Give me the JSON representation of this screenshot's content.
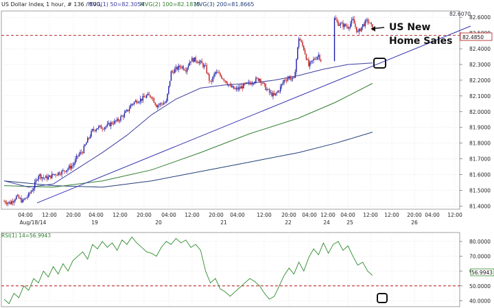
{
  "main": {
    "symbol": "US Dollar Index",
    "interval": ", 1 hour, # 136 / 500,",
    "ma_labels": [
      {
        "text": "MVG(1) 50=82.3054",
        "color": "#3b3ba0"
      },
      {
        "text": "MVG(2) 100=82.1815",
        "color": "#2f7d2f"
      },
      {
        "text": "MVG(3) 200=81.8665",
        "color": "#1f3c78"
      }
    ],
    "top_price_tag": "82.6070",
    "current_price_tag": "82.4850",
    "y_ticks": [
      "82.6000",
      "82.5000",
      "82.4000",
      "82.3000",
      "82.2000",
      "82.1000",
      "82.0000",
      "81.9000",
      "81.8000",
      "81.7000",
      "81.6000",
      "81.5000",
      "81.4000"
    ],
    "x_ticks": [
      "04:00",
      "12:00",
      "20:00",
      "04:00",
      "12:00",
      "20:00",
      "04:00",
      "12:00",
      "20:00",
      "04:00",
      "12:00",
      "20:00",
      "04:00",
      "12:00",
      "12:00",
      "04:00",
      "12:00",
      "20:00",
      "04:00",
      "12:00",
      "20:00"
    ],
    "date_ticks": [
      "Aug/18/14",
      "19",
      "20",
      "21",
      "22",
      "24",
      "25",
      "26"
    ],
    "annotation": "US New\nHome Sales"
  },
  "rsi": {
    "label": "RSI(1) 14=56.9943",
    "y_ticks": [
      "80.0000",
      "70.0000",
      "60.0000",
      "50.0000",
      "40.0000"
    ],
    "current_tag": "56.9943",
    "level_line": 50
  },
  "colors": {
    "bull": "#1a1aa8",
    "bear": "#c01818",
    "ma50": "#3b3ba0",
    "ma100": "#2f7d2f",
    "ma200": "#1f3c78",
    "trendline": "#3030b0",
    "dash": "#b01010",
    "rsi_line": "#2a8a2a"
  },
  "chart_data": [
    {
      "type": "candlestick",
      "title": "US Dollar Index , 1 hour",
      "ylim": [
        81.38,
        82.64
      ],
      "x_labels": [
        "Aug/18/14",
        "19",
        "20",
        "21",
        "22",
        "24",
        "25",
        "26"
      ],
      "series": [
        {
          "name": "MVG(1) 50",
          "value": 82.3054
        },
        {
          "name": "MVG(2) 100",
          "value": 82.1815
        },
        {
          "name": "MVG(3) 200",
          "value": 81.8665
        }
      ],
      "close_path": [
        [
          0,
          81.43
        ],
        [
          5,
          81.42
        ],
        [
          10,
          81.46
        ],
        [
          15,
          81.43
        ],
        [
          20,
          81.47
        ],
        [
          24,
          81.52
        ],
        [
          28,
          81.6
        ],
        [
          32,
          81.58
        ],
        [
          36,
          81.58
        ],
        [
          40,
          81.6
        ],
        [
          44,
          81.61
        ],
        [
          48,
          81.62
        ],
        [
          52,
          81.64
        ],
        [
          56,
          81.66
        ],
        [
          60,
          81.72
        ],
        [
          64,
          81.75
        ],
        [
          68,
          81.82
        ],
        [
          72,
          81.88
        ],
        [
          76,
          81.9
        ],
        [
          80,
          81.9
        ],
        [
          84,
          81.91
        ],
        [
          88,
          81.93
        ],
        [
          92,
          81.94
        ],
        [
          96,
          81.97
        ],
        [
          100,
          82.0
        ],
        [
          104,
          82.05
        ],
        [
          108,
          82.07
        ],
        [
          112,
          82.08
        ],
        [
          116,
          82.1
        ],
        [
          120,
          82.1
        ],
        [
          124,
          82.04
        ],
        [
          128,
          82.05
        ],
        [
          132,
          82.06
        ],
        [
          136,
          82.25
        ],
        [
          140,
          82.27
        ],
        [
          144,
          82.29
        ],
        [
          148,
          82.27
        ],
        [
          152,
          82.33
        ],
        [
          156,
          82.33
        ],
        [
          160,
          82.31
        ],
        [
          164,
          82.28
        ],
        [
          168,
          82.18
        ],
        [
          172,
          82.25
        ],
        [
          176,
          82.23
        ],
        [
          180,
          82.2
        ],
        [
          184,
          82.16
        ],
        [
          188,
          82.14
        ],
        [
          192,
          82.15
        ],
        [
          196,
          82.17
        ],
        [
          200,
          82.18
        ],
        [
          204,
          82.2
        ],
        [
          208,
          82.21
        ],
        [
          212,
          82.16
        ],
        [
          216,
          82.12
        ],
        [
          220,
          82.1
        ],
        [
          224,
          82.14
        ],
        [
          228,
          82.2
        ],
        [
          232,
          82.22
        ],
        [
          236,
          82.2
        ],
        [
          240,
          82.47
        ],
        [
          244,
          82.4
        ],
        [
          248,
          82.29
        ],
        [
          252,
          82.33
        ],
        [
          256,
          82.36
        ],
        [
          258,
          82.33
        ],
        [
          268,
          82.6
        ],
        [
          272,
          82.56
        ],
        [
          276,
          82.55
        ],
        [
          280,
          82.54
        ],
        [
          284,
          82.58
        ],
        [
          288,
          82.5
        ],
        [
          292,
          82.55
        ],
        [
          296,
          82.58
        ],
        [
          300,
          82.53
        ]
      ],
      "ma50_path": [
        [
          0,
          81.56
        ],
        [
          20,
          81.52
        ],
        [
          40,
          81.54
        ],
        [
          60,
          81.64
        ],
        [
          80,
          81.74
        ],
        [
          100,
          81.85
        ],
        [
          120,
          81.98
        ],
        [
          140,
          82.08
        ],
        [
          160,
          82.15
        ],
        [
          180,
          82.17
        ],
        [
          200,
          82.18
        ],
        [
          220,
          82.2
        ],
        [
          240,
          82.23
        ],
        [
          260,
          82.27
        ],
        [
          280,
          82.3
        ],
        [
          300,
          82.31
        ]
      ],
      "ma100_path": [
        [
          0,
          81.53
        ],
        [
          40,
          81.52
        ],
        [
          80,
          81.56
        ],
        [
          120,
          81.63
        ],
        [
          160,
          81.74
        ],
        [
          200,
          81.86
        ],
        [
          240,
          81.96
        ],
        [
          270,
          82.06
        ],
        [
          300,
          82.18
        ]
      ],
      "ma200_path": [
        [
          0,
          81.56
        ],
        [
          40,
          81.53
        ],
        [
          80,
          81.52
        ],
        [
          120,
          81.56
        ],
        [
          160,
          81.62
        ],
        [
          200,
          81.68
        ],
        [
          240,
          81.74
        ],
        [
          270,
          81.8
        ],
        [
          300,
          81.87
        ]
      ],
      "trendline": [
        [
          0,
          81.42
        ],
        [
          360,
          82.56
        ]
      ],
      "dashed_level": 82.485
    },
    {
      "type": "line",
      "title": "RSI(1) 14",
      "ylim": [
        36,
        86
      ],
      "level": 50,
      "values": [
        [
          0,
          41
        ],
        [
          4,
          38
        ],
        [
          8,
          45
        ],
        [
          12,
          42
        ],
        [
          16,
          50
        ],
        [
          20,
          47
        ],
        [
          24,
          55
        ],
        [
          28,
          52
        ],
        [
          32,
          60
        ],
        [
          36,
          56
        ],
        [
          40,
          63
        ],
        [
          44,
          58
        ],
        [
          48,
          65
        ],
        [
          52,
          60
        ],
        [
          56,
          67
        ],
        [
          60,
          70
        ],
        [
          64,
          73
        ],
        [
          68,
          68
        ],
        [
          72,
          78
        ],
        [
          76,
          75
        ],
        [
          80,
          80
        ],
        [
          84,
          76
        ],
        [
          88,
          79
        ],
        [
          92,
          74
        ],
        [
          96,
          81
        ],
        [
          100,
          78
        ],
        [
          104,
          83
        ],
        [
          108,
          79
        ],
        [
          112,
          76
        ],
        [
          116,
          73
        ],
        [
          120,
          72
        ],
        [
          124,
          70
        ],
        [
          128,
          76
        ],
        [
          132,
          80
        ],
        [
          136,
          78
        ],
        [
          140,
          82
        ],
        [
          144,
          79
        ],
        [
          148,
          81
        ],
        [
          152,
          76
        ],
        [
          156,
          78
        ],
        [
          160,
          74
        ],
        [
          164,
          60
        ],
        [
          168,
          52
        ],
        [
          172,
          55
        ],
        [
          176,
          48
        ],
        [
          180,
          46
        ],
        [
          184,
          43
        ],
        [
          188,
          46
        ],
        [
          192,
          49
        ],
        [
          196,
          52
        ],
        [
          200,
          55
        ],
        [
          204,
          53
        ],
        [
          208,
          50
        ],
        [
          212,
          45
        ],
        [
          216,
          41
        ],
        [
          220,
          43
        ],
        [
          224,
          50
        ],
        [
          228,
          57
        ],
        [
          232,
          62
        ],
        [
          236,
          58
        ],
        [
          240,
          66
        ],
        [
          244,
          60
        ],
        [
          248,
          69
        ],
        [
          252,
          75
        ],
        [
          256,
          71
        ],
        [
          260,
          79
        ],
        [
          264,
          72
        ],
        [
          268,
          78
        ],
        [
          272,
          80
        ],
        [
          276,
          74
        ],
        [
          280,
          77
        ],
        [
          284,
          70
        ],
        [
          288,
          64
        ],
        [
          292,
          66
        ],
        [
          296,
          60
        ],
        [
          300,
          57
        ]
      ]
    }
  ]
}
